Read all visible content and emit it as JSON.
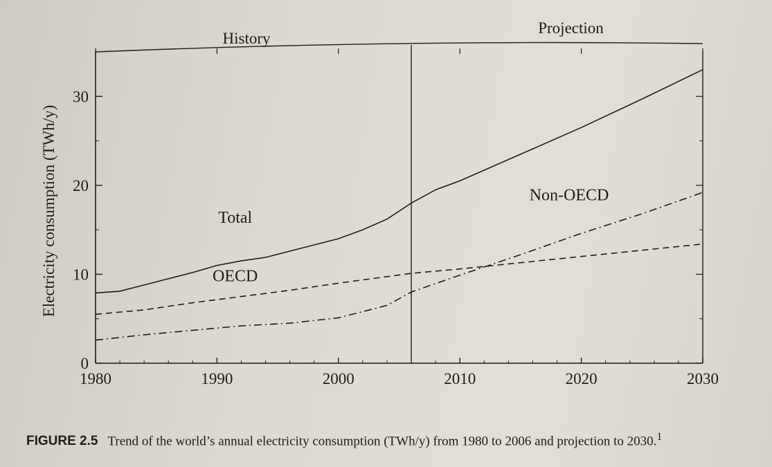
{
  "chart_data": {
    "type": "line",
    "title": "",
    "xlabel": "",
    "ylabel": "Electricity consumption (TWh/y)",
    "xlim": [
      1980,
      2030
    ],
    "ylim": [
      0,
      35
    ],
    "x_ticks": [
      "1980",
      "1990",
      "2000",
      "2010",
      "2020",
      "2030"
    ],
    "y_ticks": [
      "0",
      "10",
      "20",
      "30"
    ],
    "history_end": 2006,
    "regions": [
      "History",
      "Projection"
    ],
    "series": [
      {
        "name": "Total",
        "style": "solid",
        "x": [
          1980,
          1982,
          1984,
          1986,
          1988,
          1990,
          1992,
          1994,
          1996,
          1998,
          2000,
          2002,
          2004,
          2006,
          2008,
          2010,
          2015,
          2020,
          2025,
          2030
        ],
        "y": [
          7.9,
          8.1,
          8.8,
          9.5,
          10.2,
          11.0,
          11.5,
          11.9,
          12.6,
          13.3,
          14.0,
          15.0,
          16.2,
          18.0,
          19.5,
          20.5,
          23.5,
          26.5,
          29.7,
          33.0
        ]
      },
      {
        "name": "OECD",
        "style": "dashed",
        "x": [
          1980,
          1984,
          1988,
          1992,
          1996,
          2000,
          2006,
          2010,
          2015,
          2020,
          2025,
          2030
        ],
        "y": [
          5.5,
          6.0,
          6.8,
          7.5,
          8.2,
          9.0,
          10.1,
          10.6,
          11.3,
          12.0,
          12.7,
          13.4
        ]
      },
      {
        "name": "Non-OECD",
        "style": "dashdot",
        "x": [
          1980,
          1984,
          1988,
          1992,
          1996,
          2000,
          2004,
          2006,
          2010,
          2015,
          2020,
          2025,
          2030
        ],
        "y": [
          2.6,
          3.2,
          3.7,
          4.2,
          4.5,
          5.1,
          6.5,
          8.0,
          9.9,
          12.2,
          14.6,
          16.8,
          19.2
        ]
      }
    ],
    "annotations": [
      "Total",
      "OECD",
      "Non-OECD"
    ]
  },
  "caption": {
    "label": "FIGURE 2.5",
    "text": "Trend of the world’s annual electricity consumption (TWh/y) from 1980 to 2006 and projection to 2030.",
    "footnote": "1"
  },
  "colors": {
    "ink": "#1d1c1b",
    "paper": "#dcd8cf"
  }
}
